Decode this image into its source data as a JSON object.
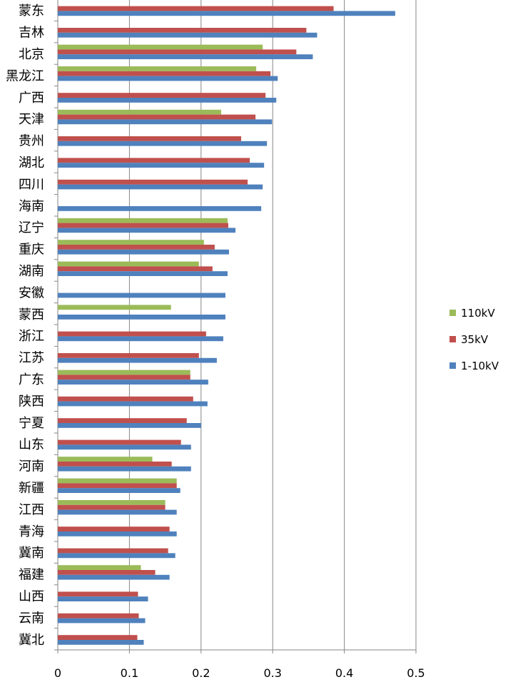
{
  "chart_data": {
    "type": "bar",
    "orientation": "horizontal",
    "categories": [
      "蒙东",
      "吉林",
      "北京",
      "黑龙江",
      "广西",
      "天津",
      "贵州",
      "湖北",
      "四川",
      "海南",
      "辽宁",
      "重庆",
      "湖南",
      "安徽",
      "蒙西",
      "浙江",
      "江苏",
      "广东",
      "陕西",
      "宁夏",
      "山东",
      "河南",
      "新疆",
      "江西",
      "青海",
      "冀南",
      "福建",
      "山西",
      "云南",
      "冀北"
    ],
    "series": [
      {
        "name": "110kV",
        "color": "#9BBB59",
        "values": [
          null,
          null,
          0.286,
          0.277,
          null,
          0.228,
          null,
          null,
          null,
          null,
          0.237,
          0.204,
          0.197,
          null,
          0.158,
          null,
          null,
          0.185,
          null,
          null,
          null,
          0.132,
          0.166,
          0.15,
          null,
          null,
          0.116,
          null,
          null,
          null
        ]
      },
      {
        "name": "35kV",
        "color": "#C0504D",
        "values": [
          0.385,
          0.347,
          0.333,
          0.297,
          0.29,
          0.276,
          0.256,
          0.268,
          0.265,
          null,
          0.238,
          0.219,
          0.216,
          null,
          null,
          0.207,
          0.197,
          0.185,
          0.189,
          0.18,
          0.172,
          0.159,
          0.166,
          0.15,
          0.156,
          0.154,
          0.136,
          0.112,
          0.113,
          0.111
        ]
      },
      {
        "name": "1-10kV",
        "color": "#4F81BD",
        "values": [
          0.471,
          0.362,
          0.356,
          0.307,
          0.305,
          0.299,
          0.292,
          0.288,
          0.286,
          0.284,
          0.248,
          0.239,
          0.237,
          0.234,
          0.234,
          0.231,
          0.222,
          0.21,
          0.209,
          0.2,
          0.186,
          0.186,
          0.171,
          0.166,
          0.166,
          0.164,
          0.156,
          0.126,
          0.122,
          0.12
        ]
      }
    ],
    "xlim": [
      0,
      0.5
    ],
    "xticks": [
      "0",
      "0.1",
      "0.2",
      "0.3",
      "0.4",
      "0.5"
    ],
    "grid": true,
    "legend": "right",
    "title": "",
    "xlabel": "",
    "ylabel": ""
  }
}
